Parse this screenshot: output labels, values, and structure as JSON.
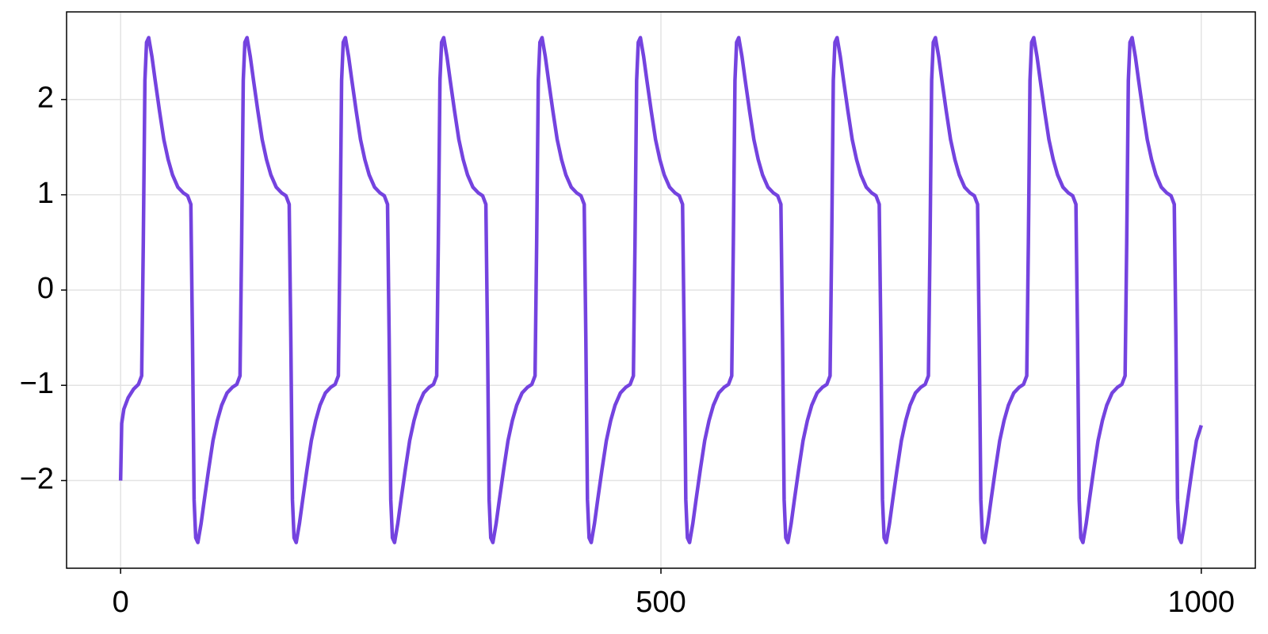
{
  "chart_data": {
    "type": "line",
    "color": "#7443df",
    "grid": true,
    "xlim": [
      -50,
      1050
    ],
    "ylim": [
      -2.92,
      2.92
    ],
    "xticks": [
      0,
      500,
      1000
    ],
    "yticks": [
      {
        "value": -2,
        "label": "−2"
      },
      {
        "value": -1,
        "label": "−1"
      },
      0,
      1,
      2
    ],
    "x": [
      0,
      1,
      3,
      7,
      12,
      16.5,
      19.5,
      21,
      22.5,
      24,
      26,
      29,
      32,
      36,
      40,
      44,
      48,
      53,
      58,
      62,
      65,
      66.5,
      68,
      69.5,
      71.5,
      74.5,
      77.5,
      81.5,
      85.5,
      89.5,
      93.5,
      98.5,
      103.5,
      107.5,
      110.5,
      112,
      113.5,
      115,
      117,
      120,
      123,
      127,
      131,
      135,
      139,
      144,
      149,
      153,
      156,
      157.5,
      159,
      160.5,
      162.5,
      165.5,
      168.5,
      172.5,
      176.5,
      180.5,
      184.5,
      189.5,
      194.5,
      198.5,
      201.5,
      203,
      204.5,
      206,
      208,
      211,
      214,
      218,
      222,
      226,
      230,
      235,
      240,
      244,
      247,
      248.5,
      250,
      251.5,
      253.5,
      256.5,
      259.5,
      263.5,
      267.5,
      271.5,
      275.5,
      280.5,
      285.5,
      289.5,
      292.5,
      294,
      295.5,
      297,
      299,
      302,
      305,
      309,
      313,
      317,
      321,
      326,
      331,
      335,
      338,
      339.5,
      341,
      342.5,
      344.5,
      347.5,
      350.5,
      354.5,
      358.5,
      362.5,
      366.5,
      371.5,
      376.5,
      380.5,
      383.5,
      385,
      386.5,
      388,
      390,
      393,
      396,
      400,
      404,
      408,
      412,
      417,
      422,
      426,
      429,
      430.5,
      432,
      433.5,
      435.5,
      438.5,
      441.5,
      445.5,
      449.5,
      453.5,
      457.5,
      462.5,
      467.5,
      471.5,
      474.5,
      476,
      477.5,
      479,
      481,
      484,
      487,
      491,
      495,
      499,
      503,
      508,
      513,
      517,
      520,
      521.5,
      523,
      524.5,
      526.5,
      529.5,
      532.5,
      536.5,
      540.5,
      544.5,
      548.5,
      553.5,
      558.5,
      562.5,
      565.5,
      567,
      568.5,
      570,
      572,
      575,
      578,
      582,
      586,
      590,
      594,
      599,
      604,
      608,
      611,
      612.5,
      614,
      615.5,
      617.5,
      620.5,
      623.5,
      627.5,
      631.5,
      635.5,
      639.5,
      644.5,
      649.5,
      653.5,
      656.5,
      658,
      659.5,
      661,
      663,
      666,
      669,
      673,
      677,
      681,
      685,
      690,
      695,
      699,
      702,
      703.5,
      705,
      706.5,
      708.5,
      711.5,
      714.5,
      718.5,
      722.5,
      726.5,
      730.5,
      735.5,
      740.5,
      744.5,
      747.5,
      749,
      750.5,
      752,
      754,
      757,
      760,
      764,
      768,
      772,
      776,
      781,
      786,
      790,
      793,
      794.5,
      796,
      797.5,
      799.5,
      802.5,
      805.5,
      809.5,
      813.5,
      817.5,
      821.5,
      826.5,
      831.5,
      835.5,
      838.5,
      840,
      841.5,
      843,
      845,
      848,
      851,
      855,
      859,
      863,
      867,
      872,
      877,
      881,
      884,
      885.5,
      887,
      888.5,
      890.5,
      893.5,
      896.5,
      900.5,
      904.5,
      908.5,
      912.5,
      917.5,
      922.5,
      926.5,
      929.5,
      931,
      932.5,
      934,
      936,
      939,
      942,
      946,
      950,
      954,
      958,
      963,
      968,
      972,
      975,
      976.5,
      978,
      979.5,
      981.5,
      984.5,
      987.5,
      991.5,
      995.5,
      1000
    ],
    "values": [
      -2,
      -1.4,
      -1.25,
      -1.13,
      -1.04,
      -0.99,
      -0.9,
      0.5,
      2.2,
      2.6,
      2.65,
      2.45,
      2.2,
      1.88,
      1.58,
      1.37,
      1.21,
      1.08,
      1.02,
      0.99,
      0.9,
      -0.5,
      -2.2,
      -2.6,
      -2.65,
      -2.45,
      -2.2,
      -1.88,
      -1.58,
      -1.37,
      -1.21,
      -1.08,
      -1.02,
      -0.99,
      -0.9,
      0.5,
      2.2,
      2.6,
      2.65,
      2.45,
      2.2,
      1.88,
      1.58,
      1.37,
      1.21,
      1.08,
      1.02,
      0.99,
      0.9,
      -0.5,
      -2.2,
      -2.6,
      -2.65,
      -2.45,
      -2.2,
      -1.88,
      -1.58,
      -1.37,
      -1.21,
      -1.08,
      -1.02,
      -0.99,
      -0.9,
      0.5,
      2.2,
      2.6,
      2.65,
      2.45,
      2.2,
      1.88,
      1.58,
      1.37,
      1.21,
      1.08,
      1.02,
      0.99,
      0.9,
      -0.5,
      -2.2,
      -2.6,
      -2.65,
      -2.45,
      -2.2,
      -1.88,
      -1.58,
      -1.37,
      -1.21,
      -1.08,
      -1.02,
      -0.99,
      -0.9,
      0.5,
      2.2,
      2.6,
      2.65,
      2.45,
      2.2,
      1.88,
      1.58,
      1.37,
      1.21,
      1.08,
      1.02,
      0.99,
      0.9,
      -0.5,
      -2.2,
      -2.6,
      -2.65,
      -2.45,
      -2.2,
      -1.88,
      -1.58,
      -1.37,
      -1.21,
      -1.08,
      -1.02,
      -0.99,
      -0.9,
      0.5,
      2.2,
      2.6,
      2.65,
      2.45,
      2.2,
      1.88,
      1.58,
      1.37,
      1.21,
      1.08,
      1.02,
      0.99,
      0.9,
      -0.5,
      -2.2,
      -2.6,
      -2.65,
      -2.45,
      -2.2,
      -1.88,
      -1.58,
      -1.37,
      -1.21,
      -1.08,
      -1.02,
      -0.99,
      -0.9,
      0.5,
      2.2,
      2.6,
      2.65,
      2.45,
      2.2,
      1.88,
      1.58,
      1.37,
      1.21,
      1.08,
      1.02,
      0.99,
      0.9,
      -0.5,
      -2.2,
      -2.6,
      -2.65,
      -2.45,
      -2.2,
      -1.88,
      -1.58,
      -1.37,
      -1.21,
      -1.08,
      -1.02,
      -0.99,
      -0.9,
      0.5,
      2.2,
      2.6,
      2.65,
      2.45,
      2.2,
      1.88,
      1.58,
      1.37,
      1.21,
      1.08,
      1.02,
      0.99,
      0.9,
      -0.5,
      -2.2,
      -2.6,
      -2.65,
      -2.45,
      -2.2,
      -1.88,
      -1.58,
      -1.37,
      -1.21,
      -1.08,
      -1.02,
      -0.99,
      -0.9,
      0.5,
      2.2,
      2.6,
      2.65,
      2.45,
      2.2,
      1.88,
      1.58,
      1.37,
      1.21,
      1.08,
      1.02,
      0.99,
      0.9,
      -0.5,
      -2.2,
      -2.6,
      -2.65,
      -2.45,
      -2.2,
      -1.88,
      -1.58,
      -1.37,
      -1.21,
      -1.08,
      -1.02,
      -0.99,
      -0.9,
      0.5,
      2.2,
      2.6,
      2.65,
      2.45,
      2.2,
      1.88,
      1.58,
      1.37,
      1.21,
      1.08,
      1.02,
      0.99,
      0.9,
      -0.5,
      -2.2,
      -2.6,
      -2.65,
      -2.45,
      -2.2,
      -1.88,
      -1.58,
      -1.37,
      -1.21,
      -1.08,
      -1.02,
      -0.99,
      -0.9,
      0.5,
      2.2,
      2.6,
      2.65,
      2.45,
      2.2,
      1.88,
      1.58,
      1.37,
      1.21,
      1.08,
      1.02,
      0.99,
      0.9,
      -0.5,
      -2.2,
      -2.6,
      -2.65,
      -2.45,
      -2.2,
      -1.88,
      -1.58,
      -1.37,
      -1.21,
      -1.08,
      -1.02,
      -0.99,
      -0.9,
      0.5,
      2.2,
      2.6,
      2.65,
      2.45,
      2.2,
      1.88,
      1.58,
      1.37,
      1.21,
      1.08,
      1.02,
      0.99,
      0.9,
      -0.5,
      -2.2,
      -2.6,
      -2.65,
      -2.45,
      -2.2,
      -1.88,
      -1.58,
      -1.42
    ]
  }
}
